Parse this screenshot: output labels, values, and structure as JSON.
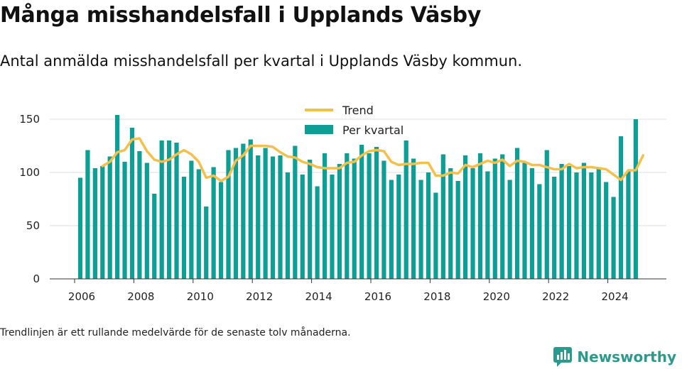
{
  "title": "Många misshandelsfall i Upplands Väsby",
  "subtitle": "Antal anmälda misshandelsfall per kvartal i Upplands Väsby kommun.",
  "footnote": "Trendlinjen är ett rullande medelvärde för de senaste tolv månaderna.",
  "brand": {
    "name": "Newsworthy",
    "icon": "newsworthy-logo-icon",
    "color": "#2b9a8e"
  },
  "colors": {
    "bars": "#0d9e95",
    "trend": "#f5c04a",
    "grid": "#dddddd",
    "axis": "#333333"
  },
  "chart_data": {
    "type": "bar",
    "x_start": "2006-Q1",
    "x_end": "2024-Q4",
    "x_ticks": [
      2006,
      2008,
      2010,
      2012,
      2014,
      2016,
      2018,
      2020,
      2022,
      2024
    ],
    "y_ticks": [
      0,
      50,
      100,
      150
    ],
    "ylim": [
      0,
      150
    ],
    "grid": true,
    "legend_position": "top-center",
    "series": [
      {
        "name": "Per kvartal",
        "type": "bar",
        "values": [
          95,
          121,
          104,
          106,
          115,
          154,
          110,
          142,
          120,
          109,
          80,
          130,
          130,
          128,
          96,
          111,
          103,
          68,
          105,
          91,
          121,
          123,
          127,
          131,
          116,
          123,
          115,
          116,
          100,
          125,
          98,
          112,
          87,
          118,
          98,
          108,
          118,
          113,
          126,
          118,
          124,
          111,
          93,
          98,
          130,
          113,
          93,
          100,
          81,
          117,
          104,
          92,
          116,
          104,
          118,
          101,
          113,
          117,
          93,
          123,
          109,
          104,
          89,
          121,
          96,
          108,
          106,
          100,
          109,
          100,
          105,
          91,
          77,
          134,
          101,
          150
        ]
      },
      {
        "name": "Trend",
        "type": "line",
        "start_index": 3,
        "values": [
          106,
          110,
          119,
          121,
          131,
          132,
          120,
          112,
          110,
          112,
          117,
          121,
          117,
          110,
          95,
          97,
          92,
          96,
          111,
          116,
          125,
          125,
          125,
          124,
          119,
          115,
          114,
          110,
          108,
          105,
          104,
          104,
          104,
          109,
          110,
          116,
          120,
          121,
          120,
          110,
          107,
          108,
          108,
          109,
          109,
          97,
          97,
          100,
          99,
          107,
          105,
          108,
          111,
          109,
          112,
          106,
          111,
          110,
          107,
          107,
          105,
          103,
          103,
          108,
          104,
          105,
          105,
          104,
          103,
          98,
          93,
          102,
          102,
          116
        ]
      }
    ]
  }
}
